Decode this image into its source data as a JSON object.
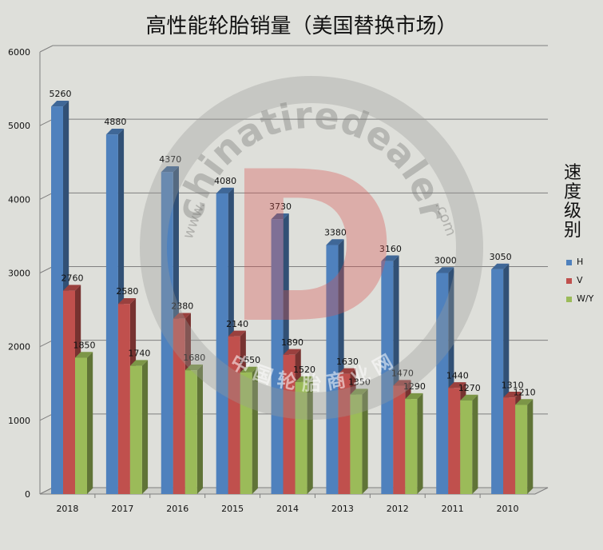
{
  "title": "高性能轮胎销量（美国替换市场）",
  "legend": {
    "title": "速度级别"
  },
  "watermark": {
    "brand": "chinatiredealer",
    "domain_left": "www.",
    "domain_right": ".com",
    "cn_text": "中 国 轮 胎 商 业 网",
    "logo_letter": "D"
  },
  "colors": {
    "background": "#dedfda",
    "gridline": "#7f7f7f",
    "H": "#4f81bd",
    "V": "#c0504d",
    "W/Y": "#9bbb59"
  },
  "chart_data": {
    "type": "bar",
    "title": "高性能轮胎销量（美国替换市场）",
    "categories": [
      "2018",
      "2017",
      "2016",
      "2015",
      "2014",
      "2013",
      "2012",
      "2011",
      "2010"
    ],
    "series": [
      {
        "name": "H",
        "values": [
          5260,
          4880,
          4370,
          4080,
          3730,
          3380,
          3160,
          3000,
          3050
        ]
      },
      {
        "name": "V",
        "values": [
          2760,
          2580,
          2380,
          2140,
          1890,
          1630,
          1470,
          1440,
          1310
        ]
      },
      {
        "name": "W/Y",
        "values": [
          1850,
          1740,
          1680,
          1650,
          1520,
          1350,
          1290,
          1270,
          1210
        ]
      }
    ],
    "yticks": [
      "0",
      "1000",
      "2000",
      "3000",
      "4000",
      "5000",
      "6000"
    ],
    "ylim": [
      0,
      6000
    ],
    "grid": true,
    "legend_position": "right",
    "bar_style": "3d-clustered-column",
    "data_labels": true
  }
}
